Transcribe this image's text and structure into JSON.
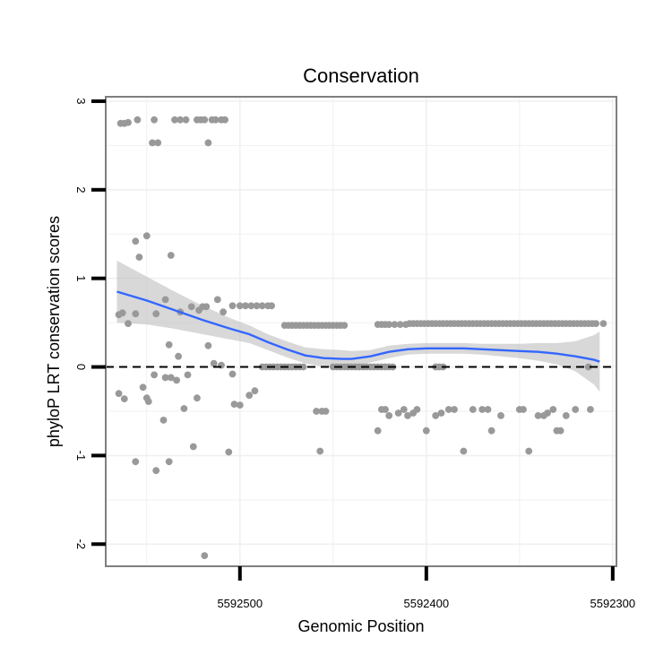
{
  "chart_data": {
    "type": "scatter",
    "title": "Conservation",
    "xlabel": "Genomic Position",
    "ylabel": "phyloP LRT conservation scores",
    "x_reversed": true,
    "xlim": [
      5592572,
      5592298
    ],
    "ylim": [
      -2.25,
      3.05
    ],
    "x_ticks": [
      5592500,
      5592400,
      5592300
    ],
    "x_tick_labels": [
      "5592500",
      "5592400",
      "5592300"
    ],
    "y_ticks": [
      -2,
      -1,
      0,
      1,
      2,
      3
    ],
    "y_tick_labels": [
      "-2",
      "-1",
      "0",
      "1",
      "2",
      "3"
    ],
    "reference_line": {
      "y": 0,
      "style": "dashed"
    },
    "colors": {
      "points": "#999999",
      "smooth_line": "#3366FF",
      "ribbon": "#BEBEBE",
      "frame": "#7F7F7F",
      "grid": "#F0F0F0"
    },
    "points": [
      [
        5592564,
        2.75
      ],
      [
        5592562,
        2.75
      ],
      [
        5592560,
        2.76
      ],
      [
        5592555,
        2.79
      ],
      [
        5592546,
        2.79
      ],
      [
        5592535,
        2.79
      ],
      [
        5592532,
        2.79
      ],
      [
        5592529,
        2.79
      ],
      [
        5592523,
        2.79
      ],
      [
        5592521,
        2.79
      ],
      [
        5592519,
        2.79
      ],
      [
        5592515,
        2.79
      ],
      [
        5592513,
        2.79
      ],
      [
        5592510,
        2.79
      ],
      [
        5592508,
        2.79
      ],
      [
        5592547,
        2.53
      ],
      [
        5592544,
        2.53
      ],
      [
        5592517,
        2.53
      ],
      [
        5592550,
        1.48
      ],
      [
        5592556,
        1.42
      ],
      [
        5592554,
        1.24
      ],
      [
        5592537,
        1.26
      ],
      [
        5592565,
        0.59
      ],
      [
        5592563,
        0.61
      ],
      [
        5592560,
        0.49
      ],
      [
        5592556,
        0.6
      ],
      [
        5592545,
        0.6
      ],
      [
        5592540,
        0.76
      ],
      [
        5592532,
        0.62
      ],
      [
        5592526,
        0.68
      ],
      [
        5592522,
        0.64
      ],
      [
        5592520,
        0.68
      ],
      [
        5592518,
        0.68
      ],
      [
        5592512,
        0.76
      ],
      [
        5592509,
        0.62
      ],
      [
        5592504,
        0.69
      ],
      [
        5592500,
        0.69
      ],
      [
        5592497,
        0.69
      ],
      [
        5592494,
        0.69
      ],
      [
        5592491,
        0.69
      ],
      [
        5592488,
        0.69
      ],
      [
        5592485,
        0.69
      ],
      [
        5592483,
        0.69
      ],
      [
        5592565,
        -0.3
      ],
      [
        5592562,
        -0.36
      ],
      [
        5592556,
        -1.07
      ],
      [
        5592552,
        -0.23
      ],
      [
        5592550,
        -0.35
      ],
      [
        5592549,
        -0.39
      ],
      [
        5592546,
        -0.09
      ],
      [
        5592545,
        -1.17
      ],
      [
        5592541,
        -0.6
      ],
      [
        5592540,
        -0.12
      ],
      [
        5592538,
        -1.07
      ],
      [
        5592537,
        -0.12
      ],
      [
        5592534,
        -0.15
      ],
      [
        5592530,
        -0.47
      ],
      [
        5592528,
        -0.09
      ],
      [
        5592525,
        -0.9
      ],
      [
        5592523,
        -0.35
      ],
      [
        5592519,
        -2.13
      ],
      [
        5592517,
        0.24
      ],
      [
        5592514,
        0.04
      ],
      [
        5592510,
        0.02
      ],
      [
        5592506,
        -0.96
      ],
      [
        5592504,
        -0.08
      ],
      [
        5592503,
        -0.42
      ],
      [
        5592500,
        -0.43
      ],
      [
        5592495,
        -0.32
      ],
      [
        5592492,
        -0.27
      ],
      [
        5592538,
        0.25
      ],
      [
        5592533,
        0.12
      ],
      [
        5592488,
        0.0
      ],
      [
        5592486,
        0.0
      ],
      [
        5592484,
        0.0
      ],
      [
        5592482,
        0.0
      ],
      [
        5592480,
        0.0
      ],
      [
        5592478,
        0.0
      ],
      [
        5592476,
        0.0
      ],
      [
        5592474,
        0.0
      ],
      [
        5592472,
        0.0
      ],
      [
        5592470,
        0.0
      ],
      [
        5592468,
        0.0
      ],
      [
        5592466,
        0.0
      ],
      [
        5592450,
        0.0
      ],
      [
        5592448,
        0.0
      ],
      [
        5592446,
        0.0
      ],
      [
        5592444,
        0.0
      ],
      [
        5592442,
        0.0
      ],
      [
        5592440,
        0.0
      ],
      [
        5592438,
        0.0
      ],
      [
        5592436,
        0.0
      ],
      [
        5592434,
        0.0
      ],
      [
        5592432,
        0.0
      ],
      [
        5592430,
        0.0
      ],
      [
        5592428,
        0.0
      ],
      [
        5592426,
        0.0
      ],
      [
        5592424,
        0.0
      ],
      [
        5592422,
        0.0
      ],
      [
        5592420,
        0.0
      ],
      [
        5592418,
        0.0
      ],
      [
        5592395,
        0.0
      ],
      [
        5592393,
        0.0
      ],
      [
        5592391,
        0.0
      ],
      [
        5592313,
        0.0
      ],
      [
        5592476,
        0.47
      ],
      [
        5592474,
        0.47
      ],
      [
        5592472,
        0.47
      ],
      [
        5592470,
        0.47
      ],
      [
        5592468,
        0.47
      ],
      [
        5592466,
        0.47
      ],
      [
        5592464,
        0.47
      ],
      [
        5592462,
        0.47
      ],
      [
        5592460,
        0.47
      ],
      [
        5592458,
        0.47
      ],
      [
        5592456,
        0.47
      ],
      [
        5592454,
        0.47
      ],
      [
        5592452,
        0.47
      ],
      [
        5592450,
        0.47
      ],
      [
        5592448,
        0.47
      ],
      [
        5592446,
        0.47
      ],
      [
        5592444,
        0.47
      ],
      [
        5592426,
        0.48
      ],
      [
        5592424,
        0.48
      ],
      [
        5592422,
        0.48
      ],
      [
        5592420,
        0.48
      ],
      [
        5592417,
        0.48
      ],
      [
        5592414,
        0.48
      ],
      [
        5592411,
        0.48
      ],
      [
        5592409,
        0.49
      ],
      [
        5592407,
        0.49
      ],
      [
        5592405,
        0.49
      ],
      [
        5592403,
        0.49
      ],
      [
        5592401,
        0.49
      ],
      [
        5592399,
        0.49
      ],
      [
        5592397,
        0.49
      ],
      [
        5592395,
        0.49
      ],
      [
        5592393,
        0.49
      ],
      [
        5592391,
        0.49
      ],
      [
        5592389,
        0.49
      ],
      [
        5592387,
        0.49
      ],
      [
        5592385,
        0.49
      ],
      [
        5592383,
        0.49
      ],
      [
        5592381,
        0.49
      ],
      [
        5592379,
        0.49
      ],
      [
        5592377,
        0.49
      ],
      [
        5592375,
        0.49
      ],
      [
        5592373,
        0.49
      ],
      [
        5592371,
        0.49
      ],
      [
        5592369,
        0.49
      ],
      [
        5592367,
        0.49
      ],
      [
        5592365,
        0.49
      ],
      [
        5592363,
        0.49
      ],
      [
        5592361,
        0.49
      ],
      [
        5592359,
        0.49
      ],
      [
        5592357,
        0.49
      ],
      [
        5592355,
        0.49
      ],
      [
        5592353,
        0.49
      ],
      [
        5592351,
        0.49
      ],
      [
        5592349,
        0.49
      ],
      [
        5592347,
        0.49
      ],
      [
        5592345,
        0.49
      ],
      [
        5592343,
        0.49
      ],
      [
        5592341,
        0.49
      ],
      [
        5592339,
        0.49
      ],
      [
        5592337,
        0.49
      ],
      [
        5592335,
        0.49
      ],
      [
        5592333,
        0.49
      ],
      [
        5592331,
        0.49
      ],
      [
        5592329,
        0.49
      ],
      [
        5592327,
        0.49
      ],
      [
        5592325,
        0.49
      ],
      [
        5592323,
        0.49
      ],
      [
        5592321,
        0.49
      ],
      [
        5592319,
        0.49
      ],
      [
        5592317,
        0.49
      ],
      [
        5592315,
        0.49
      ],
      [
        5592313,
        0.49
      ],
      [
        5592311,
        0.49
      ],
      [
        5592309,
        0.49
      ],
      [
        5592305,
        0.49
      ],
      [
        5592459,
        -0.5
      ],
      [
        5592456,
        -0.5
      ],
      [
        5592454,
        -0.5
      ],
      [
        5592457,
        -0.95
      ],
      [
        5592426,
        -0.72
      ],
      [
        5592424,
        -0.48
      ],
      [
        5592422,
        -0.48
      ],
      [
        5592420,
        -0.55
      ],
      [
        5592415,
        -0.52
      ],
      [
        5592412,
        -0.48
      ],
      [
        5592410,
        -0.55
      ],
      [
        5592407,
        -0.52
      ],
      [
        5592405,
        -0.48
      ],
      [
        5592400,
        -0.72
      ],
      [
        5592395,
        -0.55
      ],
      [
        5592392,
        -0.52
      ],
      [
        5592388,
        -0.48
      ],
      [
        5592385,
        -0.48
      ],
      [
        5592380,
        -0.95
      ],
      [
        5592375,
        -0.48
      ],
      [
        5592370,
        -0.48
      ],
      [
        5592367,
        -0.48
      ],
      [
        5592365,
        -0.72
      ],
      [
        5592360,
        -0.55
      ],
      [
        5592350,
        -0.48
      ],
      [
        5592348,
        -0.48
      ],
      [
        5592345,
        -0.95
      ],
      [
        5592340,
        -0.55
      ],
      [
        5592337,
        -0.55
      ],
      [
        5592335,
        -0.52
      ],
      [
        5592332,
        -0.48
      ],
      [
        5592330,
        -0.72
      ],
      [
        5592328,
        -0.72
      ],
      [
        5592325,
        -0.55
      ],
      [
        5592320,
        -0.48
      ],
      [
        5592312,
        -0.48
      ]
    ],
    "smooth": {
      "x": [
        5592566,
        5592550,
        5592535,
        5592520,
        5592505,
        5592495,
        5592485,
        5592475,
        5592465,
        5592455,
        5592445,
        5592440,
        5592430,
        5592420,
        5592410,
        5592400,
        5592390,
        5592380,
        5592370,
        5592360,
        5592350,
        5592340,
        5592330,
        5592320,
        5592310,
        5592307
      ],
      "y": [
        0.85,
        0.75,
        0.64,
        0.53,
        0.43,
        0.37,
        0.28,
        0.2,
        0.13,
        0.1,
        0.09,
        0.09,
        0.12,
        0.17,
        0.2,
        0.21,
        0.21,
        0.21,
        0.2,
        0.19,
        0.18,
        0.17,
        0.15,
        0.12,
        0.08,
        0.06
      ],
      "lower": [
        0.5,
        0.48,
        0.43,
        0.37,
        0.31,
        0.27,
        0.19,
        0.11,
        0.04,
        0.0,
        -0.01,
        0.0,
        0.05,
        0.1,
        0.14,
        0.15,
        0.15,
        0.15,
        0.14,
        0.12,
        0.1,
        0.07,
        0.03,
        -0.05,
        -0.2,
        -0.28
      ],
      "upper": [
        1.2,
        1.02,
        0.85,
        0.69,
        0.55,
        0.47,
        0.37,
        0.29,
        0.22,
        0.2,
        0.19,
        0.18,
        0.19,
        0.24,
        0.26,
        0.27,
        0.27,
        0.27,
        0.26,
        0.26,
        0.26,
        0.27,
        0.27,
        0.29,
        0.36,
        0.4
      ]
    }
  }
}
